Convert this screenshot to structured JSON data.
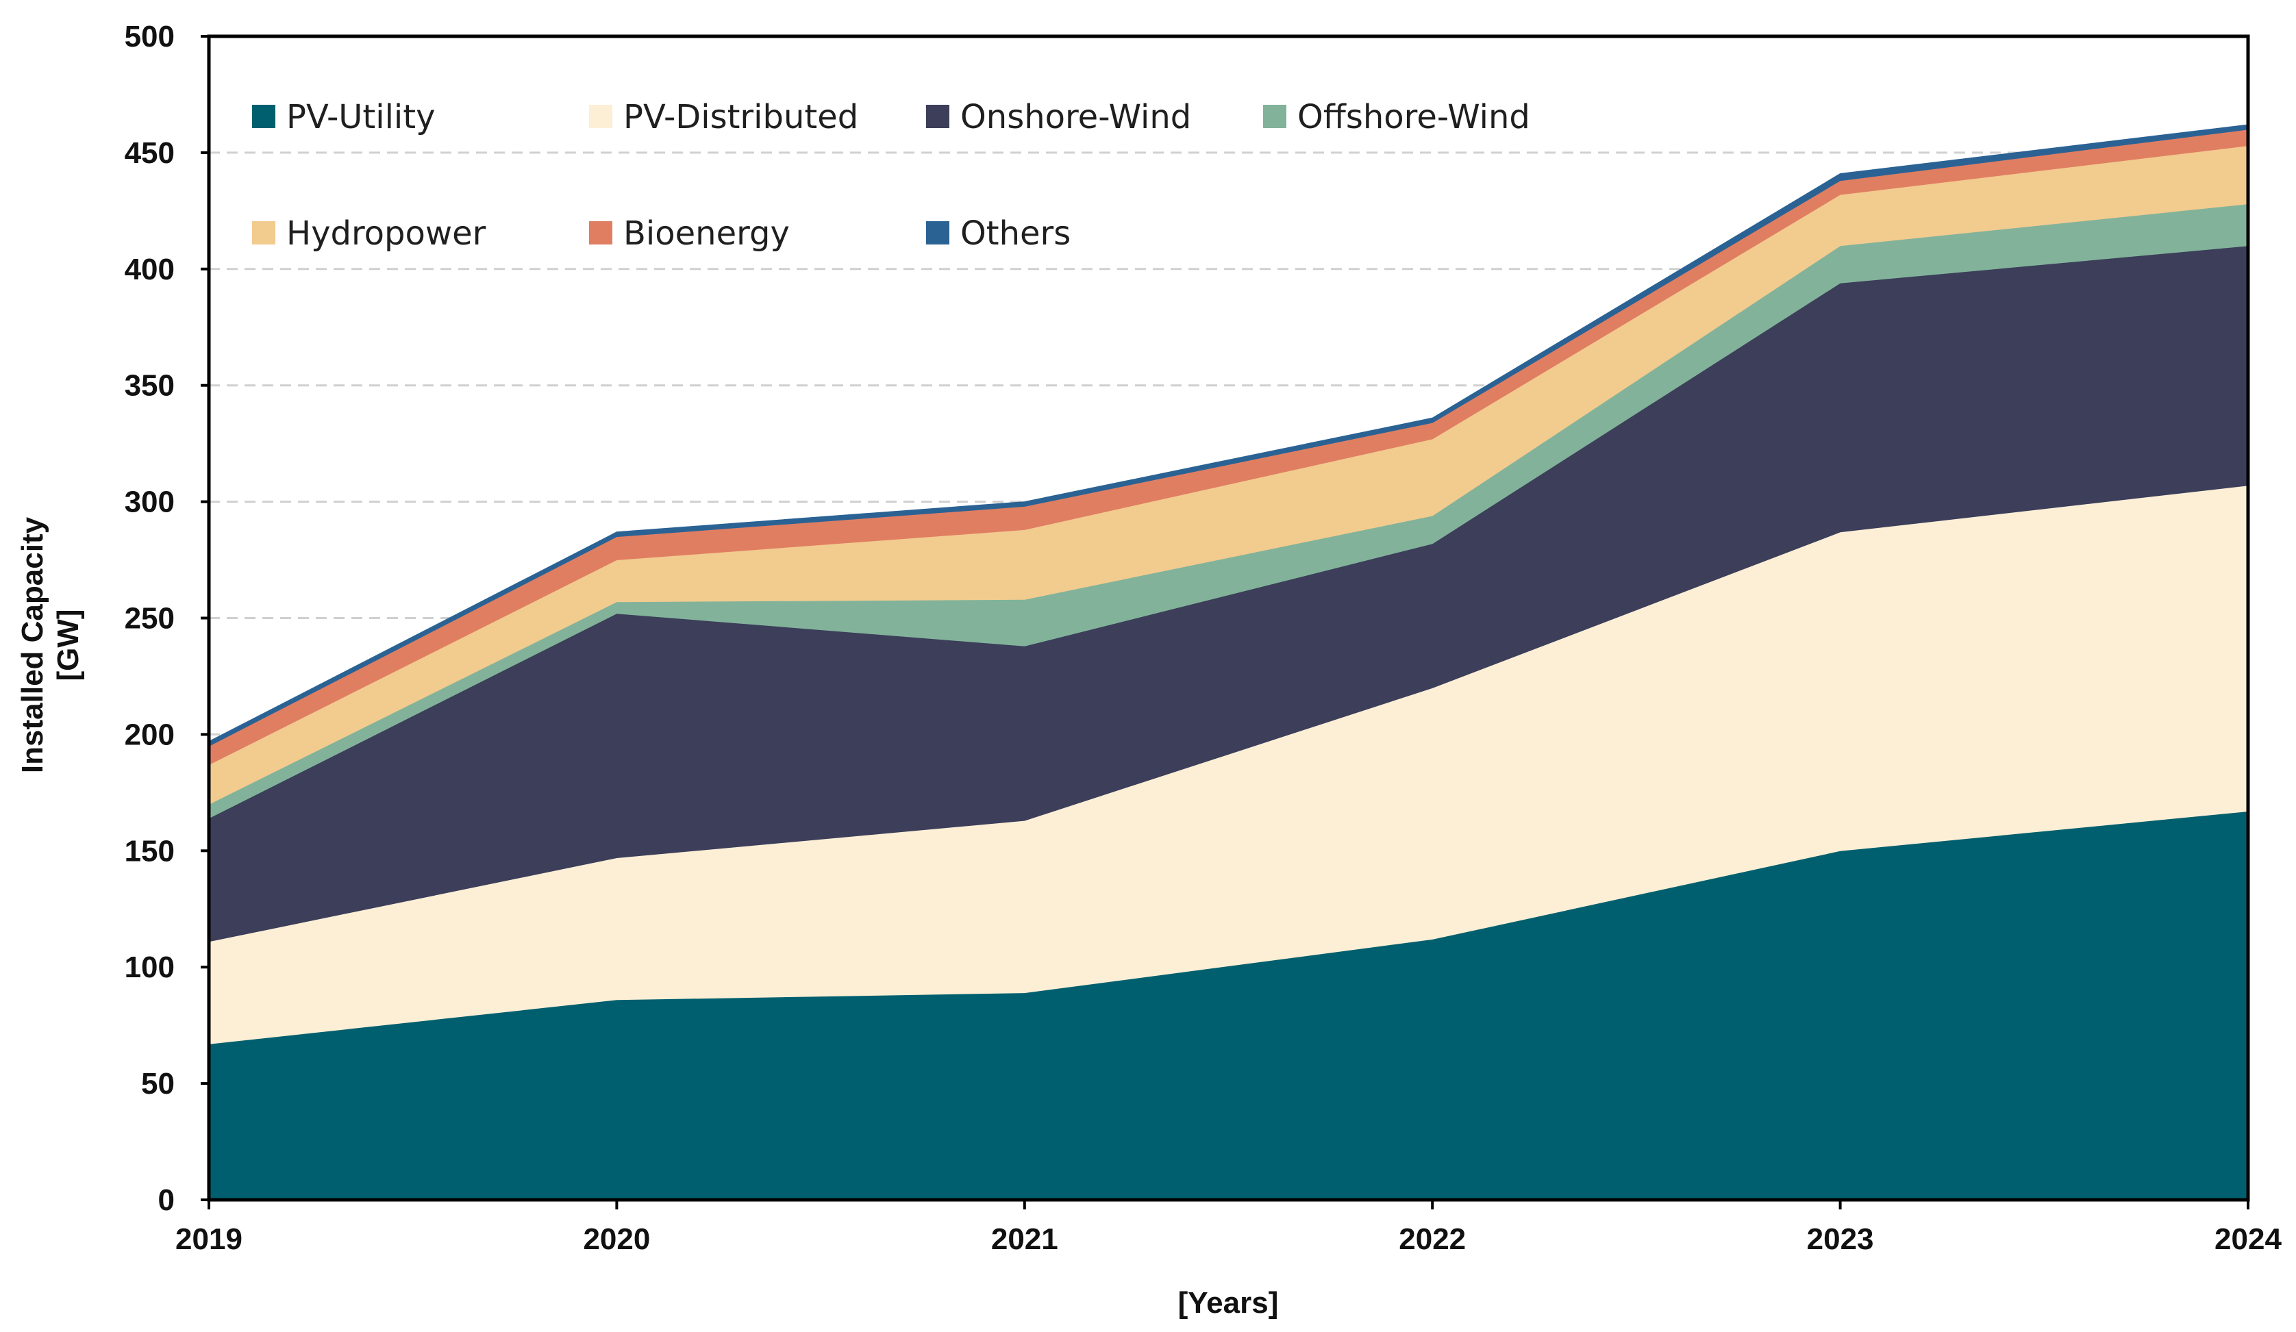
{
  "chart_data": {
    "type": "area",
    "stacked": true,
    "title": "",
    "xlabel": "[Years]",
    "ylabel_line1": "Installed Capacity",
    "ylabel_line2": "[GW]",
    "x": [
      "2019",
      "2020",
      "2021",
      "2022",
      "2023",
      "2024"
    ],
    "ylim": [
      0,
      500
    ],
    "yticks": [
      "0",
      "50",
      "100",
      "150",
      "200",
      "250",
      "300",
      "350",
      "400",
      "450",
      "500"
    ],
    "gridlines": "horizontal dashed",
    "legend_position": "top-left, inside plot",
    "series": [
      {
        "name": "PV-Utility",
        "color": "#005f6e",
        "values": [
          67,
          86,
          89,
          112,
          150,
          167
        ]
      },
      {
        "name": "PV-Distributed",
        "color": "#fcefd6",
        "values": [
          44,
          61,
          74,
          108,
          137,
          140
        ]
      },
      {
        "name": "Onshore-Wind",
        "color": "#3c3e5a",
        "values": [
          53,
          105,
          75,
          62,
          107,
          103
        ]
      },
      {
        "name": "Offshore-Wind",
        "color": "#82b39a",
        "values": [
          6,
          5,
          20,
          12,
          16,
          18
        ]
      },
      {
        "name": "Hydropower",
        "color": "#f2cb8f",
        "values": [
          17,
          18,
          30,
          33,
          22,
          25
        ]
      },
      {
        "name": "Bioenergy",
        "color": "#e07e62",
        "values": [
          8,
          10,
          10,
          7,
          6,
          7
        ]
      },
      {
        "name": "Others",
        "color": "#2b6294",
        "values": [
          2,
          2,
          2,
          2,
          3,
          2
        ]
      }
    ]
  }
}
